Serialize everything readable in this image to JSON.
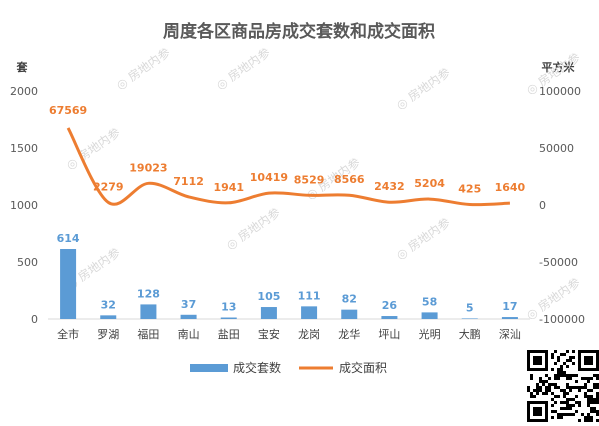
{
  "chart_data": {
    "type": "bar",
    "title": "周度各区商品房成交套数和成交面积",
    "categories": [
      "全市",
      "罗湖",
      "福田",
      "南山",
      "盐田",
      "宝安",
      "龙岗",
      "龙华",
      "坪山",
      "光明",
      "大鹏",
      "深汕"
    ],
    "series": [
      {
        "name": "成交套数",
        "type": "bar",
        "axis": "left",
        "color": "#5b9bd5",
        "values": [
          614,
          32,
          128,
          37,
          13,
          105,
          111,
          82,
          26,
          58,
          5,
          17
        ]
      },
      {
        "name": "成交面积",
        "type": "line",
        "axis": "right",
        "color": "#ed7d31",
        "values": [
          67569,
          2279,
          19023,
          7112,
          1941,
          10419,
          8529,
          8566,
          2432,
          5204,
          425,
          1640
        ]
      }
    ],
    "left_axis": {
      "label": "套",
      "min": 0,
      "max": 2000,
      "ticks": [
        0,
        500,
        1000,
        1500,
        2000
      ]
    },
    "right_axis": {
      "label": "平方米",
      "min": -100000,
      "max": 100000,
      "ticks": [
        -100000,
        -50000,
        0,
        50000,
        100000
      ]
    },
    "grid": false,
    "legend_position": "bottom",
    "watermark_text": "房地内参"
  }
}
